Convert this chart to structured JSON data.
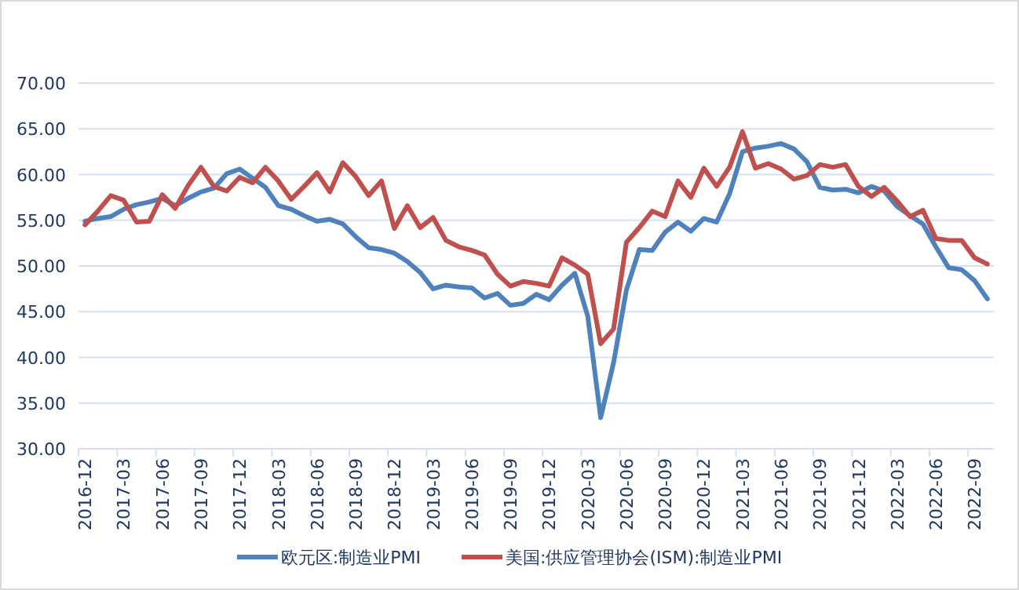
{
  "chart_data": {
    "type": "line",
    "categories": [
      "2016-12",
      null,
      null,
      "2017-03",
      null,
      null,
      "2017-06",
      null,
      null,
      "2017-09",
      null,
      null,
      "2017-12",
      null,
      null,
      "2018-03",
      null,
      null,
      "2018-06",
      null,
      null,
      "2018-09",
      null,
      null,
      "2018-12",
      null,
      null,
      "2019-03",
      null,
      null,
      "2019-06",
      null,
      null,
      "2019-09",
      null,
      null,
      "2019-12",
      null,
      null,
      "2020-03",
      null,
      null,
      "2020-06",
      null,
      null,
      "2020-09",
      null,
      null,
      "2020-12",
      null,
      null,
      "2021-03",
      null,
      null,
      "2021-06",
      null,
      null,
      "2021-09",
      null,
      null,
      "2021-12",
      null,
      null,
      "2022-03",
      null,
      null,
      "2022-06",
      null,
      null,
      "2022-09",
      null
    ],
    "series": [
      {
        "name": "欧元区:制造业PMI",
        "color": "#4f81bd",
        "values": [
          54.9,
          55.2,
          55.4,
          56.2,
          56.7,
          57.0,
          57.4,
          56.6,
          57.4,
          58.1,
          58.5,
          60.1,
          60.6,
          59.6,
          58.6,
          56.6,
          56.2,
          55.5,
          54.9,
          55.1,
          54.6,
          53.2,
          52.0,
          51.8,
          51.4,
          50.5,
          49.3,
          47.5,
          47.9,
          47.7,
          47.6,
          46.5,
          47.0,
          45.7,
          45.9,
          46.9,
          46.3,
          47.9,
          49.2,
          44.5,
          33.4,
          39.4,
          47.4,
          51.8,
          51.7,
          53.7,
          54.8,
          53.8,
          55.2,
          54.8,
          57.9,
          62.5,
          62.9,
          63.1,
          63.4,
          62.8,
          61.4,
          58.6,
          58.3,
          58.4,
          58.0,
          58.7,
          58.2,
          56.5,
          55.5,
          54.6,
          52.1,
          49.8,
          49.6,
          48.4,
          46.4
        ]
      },
      {
        "name": "美国:供应管理协会(ISM):制造业PMI",
        "color": "#c0504d",
        "values": [
          54.5,
          56.0,
          57.7,
          57.2,
          54.8,
          54.9,
          57.8,
          56.3,
          58.8,
          60.8,
          58.7,
          58.2,
          59.7,
          59.1,
          60.8,
          59.3,
          57.3,
          58.7,
          60.2,
          58.1,
          61.3,
          59.8,
          57.7,
          59.3,
          54.1,
          56.6,
          54.2,
          55.3,
          52.8,
          52.1,
          51.7,
          51.2,
          49.1,
          47.8,
          48.3,
          48.1,
          47.8,
          50.9,
          50.1,
          49.1,
          41.5,
          43.1,
          52.6,
          54.2,
          56.0,
          55.4,
          59.3,
          57.5,
          60.7,
          58.7,
          60.8,
          64.7,
          60.7,
          61.2,
          60.6,
          59.5,
          59.9,
          61.1,
          60.8,
          61.1,
          58.7,
          57.6,
          58.6,
          57.1,
          55.4,
          56.1,
          53.0,
          52.8,
          52.8,
          50.9,
          50.2
        ]
      }
    ],
    "ylim": [
      30,
      70
    ],
    "yticks": [
      {
        "value": 30,
        "label": "30.00"
      },
      {
        "value": 35,
        "label": "35.00"
      },
      {
        "value": 40,
        "label": "40.00"
      },
      {
        "value": 45,
        "label": "45.00"
      },
      {
        "value": 50,
        "label": "50.00"
      },
      {
        "value": 55,
        "label": "55.00"
      },
      {
        "value": 60,
        "label": "60.00"
      },
      {
        "value": 65,
        "label": "65.00"
      },
      {
        "value": 70,
        "label": "70.00"
      }
    ],
    "grid": "y",
    "legend": "bottom",
    "marker": "none",
    "line_style": "solid"
  }
}
